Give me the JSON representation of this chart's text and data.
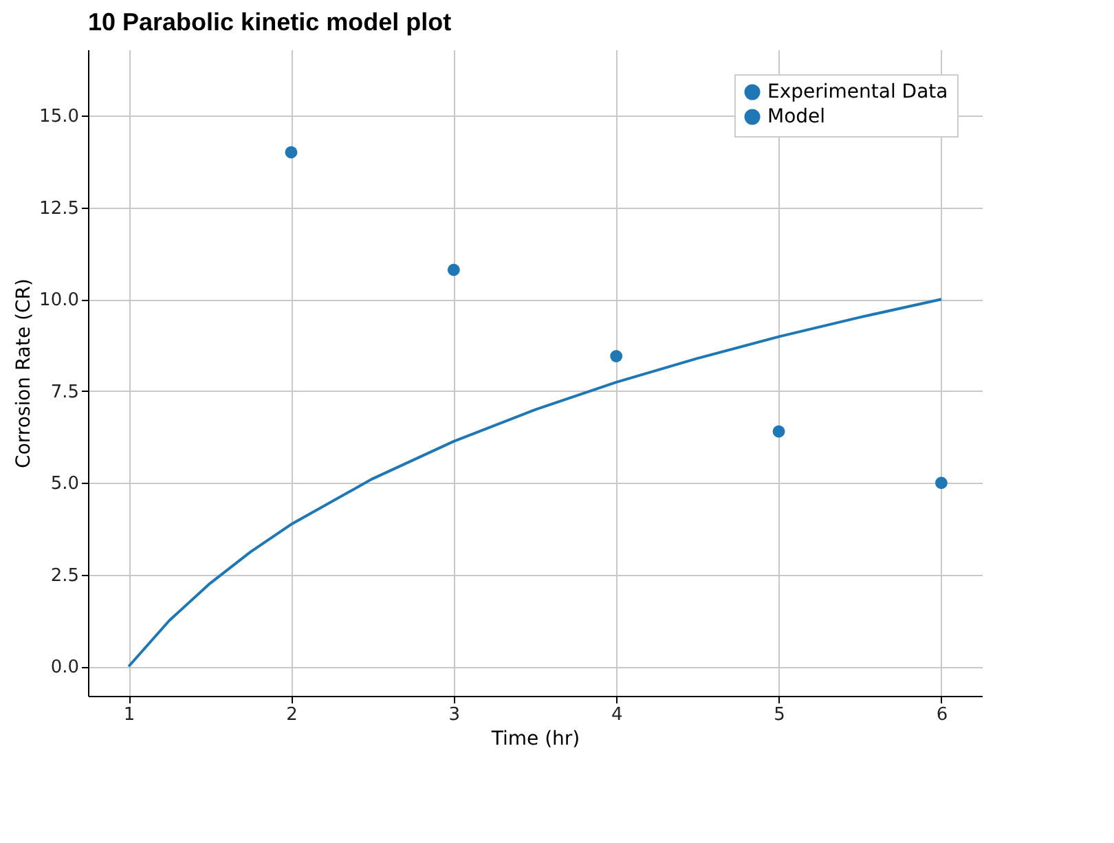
{
  "chart_data": {
    "type": "scatter",
    "title": "10    Parabolic kinetic model plot",
    "xlabel": "Time (hr)",
    "ylabel": "Corrosion Rate (CR)",
    "series": [
      {
        "name": "Experimental Data",
        "color": "#1f77b4",
        "marker": "circle",
        "x": [
          2,
          3,
          4,
          5,
          6
        ],
        "values": [
          14.0,
          10.8,
          8.45,
          6.4,
          5.0
        ]
      },
      {
        "name": "Model",
        "type": "line",
        "line_style": "solid",
        "color": "#1f77b4",
        "x": [
          1,
          1.25,
          1.5,
          1.75,
          2,
          2.5,
          3,
          3.5,
          4,
          4.5,
          5,
          5.5,
          6
        ],
        "values": [
          0,
          1.25,
          2.26,
          3.12,
          3.87,
          5.11,
          6.13,
          6.99,
          7.74,
          8.39,
          8.98,
          9.51,
          10.0
        ]
      }
    ],
    "xlim": [
      0.75,
      6.25
    ],
    "xticks": [
      1,
      2,
      3,
      4,
      5,
      6
    ],
    "ylim": [
      -0.8,
      16.8
    ],
    "yticks": [
      {
        "value": 0,
        "label": "0.0"
      },
      {
        "value": 2.5,
        "label": "2.5"
      },
      {
        "value": 5,
        "label": "5.0"
      },
      {
        "value": 7.5,
        "label": "7.5"
      },
      {
        "value": 10,
        "label": "10.0"
      },
      {
        "value": 12.5,
        "label": "12.5"
      },
      {
        "value": 15,
        "label": "15.0"
      }
    ],
    "grid": true,
    "legend": "top right"
  }
}
